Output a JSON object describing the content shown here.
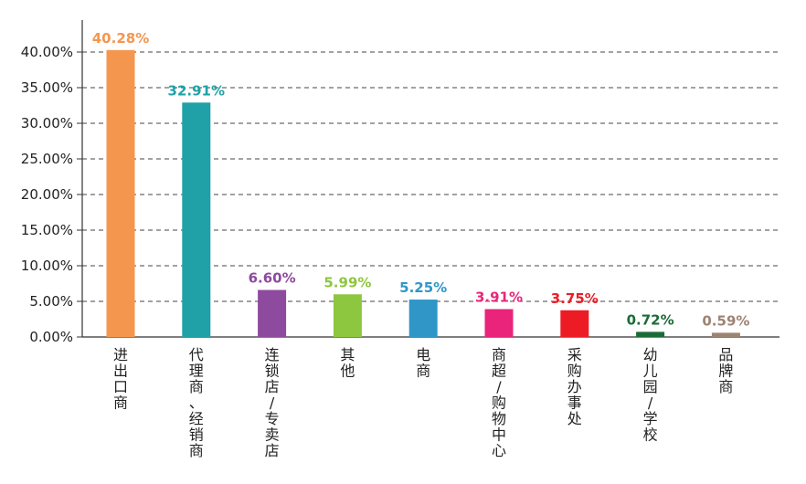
{
  "chart_data": {
    "type": "bar",
    "categories": [
      "进出口商",
      "代理商、经销商",
      "连锁店/专卖店",
      "其他",
      "电商",
      "商超/购物中心",
      "采购办事处",
      "幼儿园/学校",
      "品牌商"
    ],
    "values": [
      40.28,
      32.91,
      6.6,
      5.99,
      5.25,
      3.91,
      3.75,
      0.72,
      0.59
    ],
    "value_labels": [
      "40.28%",
      "32.91%",
      "6.60%",
      "5.99%",
      "5.25%",
      "3.91%",
      "3.75%",
      "0.72%",
      "0.59%"
    ],
    "colors": [
      "#F5964F",
      "#20A1A8",
      "#8E4A9E",
      "#8DC63F",
      "#2F96C7",
      "#E9247A",
      "#ED1C24",
      "#1B6B37",
      "#9E8373"
    ],
    "y_ticks": [
      "0.00%",
      "5.00%",
      "10.00%",
      "15.00%",
      "20.00%",
      "25.00%",
      "30.00%",
      "35.00%",
      "40.00%"
    ],
    "ylim": [
      0,
      40
    ],
    "y_tick_values": [
      0,
      5,
      10,
      15,
      20,
      25,
      30,
      35,
      40
    ],
    "grid": "horizontal dashed",
    "title": "",
    "xlabel": "",
    "ylabel": ""
  }
}
